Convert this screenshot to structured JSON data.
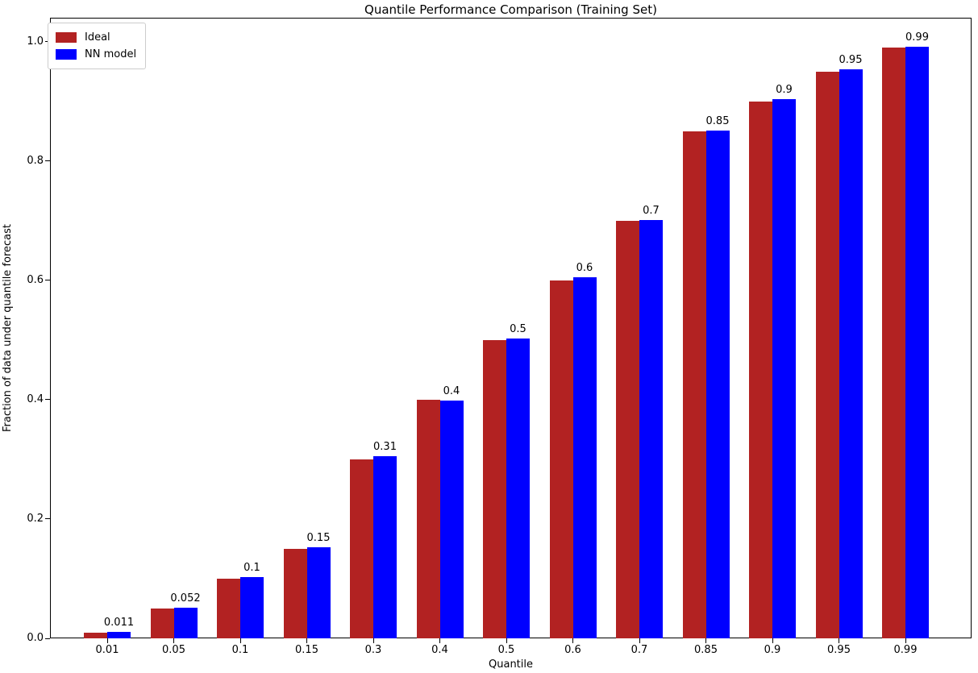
{
  "chart_data": {
    "type": "bar",
    "title": "Quantile Performance Comparison (Training Set)",
    "xlabel": "Quantile",
    "ylabel": "Fraction of data under quantile forecast",
    "categories": [
      "0.01",
      "0.05",
      "0.1",
      "0.15",
      "0.3",
      "0.4",
      "0.5",
      "0.6",
      "0.7",
      "0.85",
      "0.9",
      "0.95",
      "0.99"
    ],
    "series": [
      {
        "name": "Ideal",
        "color": "#b22222",
        "values": [
          0.01,
          0.05,
          0.1,
          0.15,
          0.3,
          0.4,
          0.5,
          0.6,
          0.7,
          0.85,
          0.9,
          0.95,
          0.99
        ]
      },
      {
        "name": "NN model",
        "color": "#0000ff",
        "values": [
          0.011,
          0.052,
          0.102,
          0.152,
          0.305,
          0.398,
          0.503,
          0.605,
          0.701,
          0.851,
          0.903,
          0.954,
          0.992
        ]
      }
    ],
    "bar_labels": [
      "0.011",
      "0.052",
      "0.1",
      "0.15",
      "0.31",
      "0.4",
      "0.5",
      "0.6",
      "0.7",
      "0.85",
      "0.9",
      "0.95",
      "0.99"
    ],
    "yticks": [
      "0.0",
      "0.2",
      "0.4",
      "0.6",
      "0.8",
      "1.0"
    ],
    "ylim": [
      0,
      1.04
    ],
    "grid": false,
    "legend": {
      "position": "upper-left",
      "entries": [
        "Ideal",
        "NN model"
      ]
    }
  }
}
